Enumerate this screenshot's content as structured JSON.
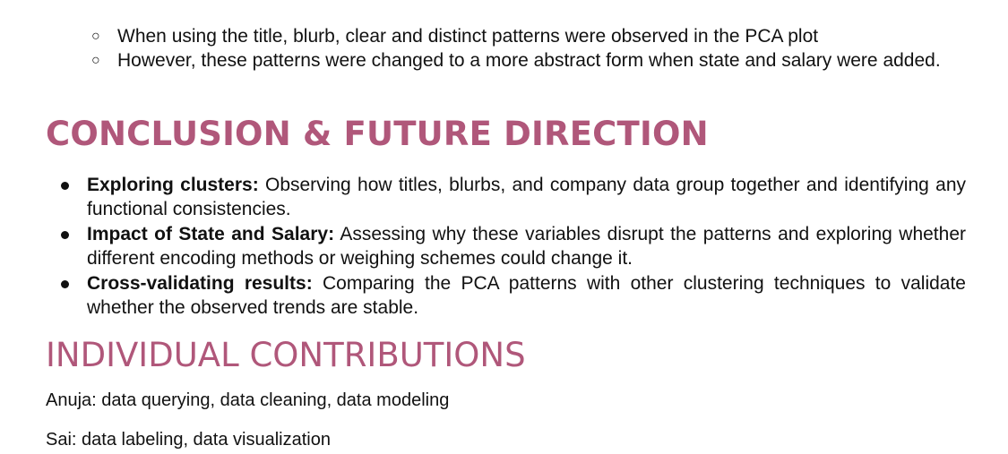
{
  "sub_bullets": [
    "When using the title, blurb, clear and distinct patterns were observed in the PCA plot",
    "However, these patterns were changed to a more abstract form when state and salary were added."
  ],
  "conclusion": {
    "heading": "CONCLUSION & FUTURE DIRECTION",
    "items": [
      {
        "term": "Exploring clusters:",
        "text": " Observing how titles, blurbs, and company data group together and identifying any functional consistencies."
      },
      {
        "term": "Impact of State and Salary:",
        "text": " Assessing why these variables disrupt the patterns and exploring whether different encoding methods or weighing schemes could change it."
      },
      {
        "term": "Cross-validating results:",
        "text": " Comparing the PCA patterns with other clustering techniques to validate whether the observed trends are stable."
      }
    ]
  },
  "contributions": {
    "heading": "INDIVIDUAL CONTRIBUTIONS",
    "lines": [
      "Anuja: data querying, data cleaning, data modeling",
      "Sai: data labeling, data visualization"
    ]
  },
  "colors": {
    "heading": "#b0577a",
    "text": "#111111"
  }
}
